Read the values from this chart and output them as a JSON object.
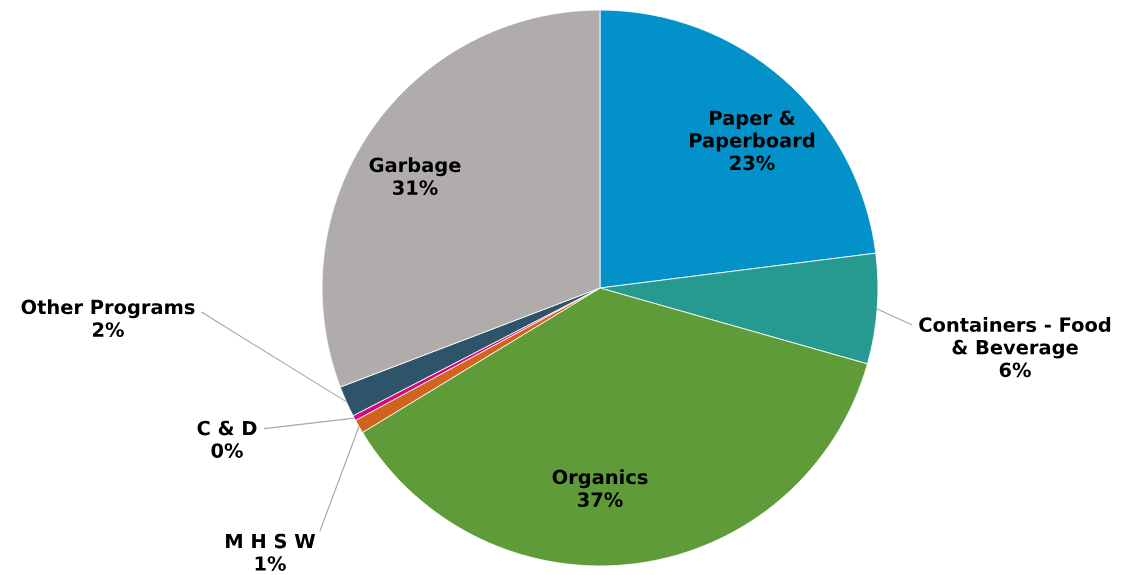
{
  "chart_data": {
    "type": "pie",
    "categories": [
      "Paper &\nPaperboard",
      "Containers - Food\n& Beverage",
      "Organics",
      "M H S W",
      "C & D",
      "Other Programs",
      "Garbage"
    ],
    "values": [
      23.0,
      6.4,
      36.9,
      0.8,
      0.3,
      1.8,
      30.8
    ],
    "value_labels": [
      "23%",
      "6%",
      "37%",
      "1%",
      "0%",
      "2%",
      "31%"
    ],
    "colors": [
      "#0391c9",
      "#279a8f",
      "#5f9c39",
      "#d1641c",
      "#d10a7f",
      "#2d5468",
      "#afacab"
    ]
  }
}
